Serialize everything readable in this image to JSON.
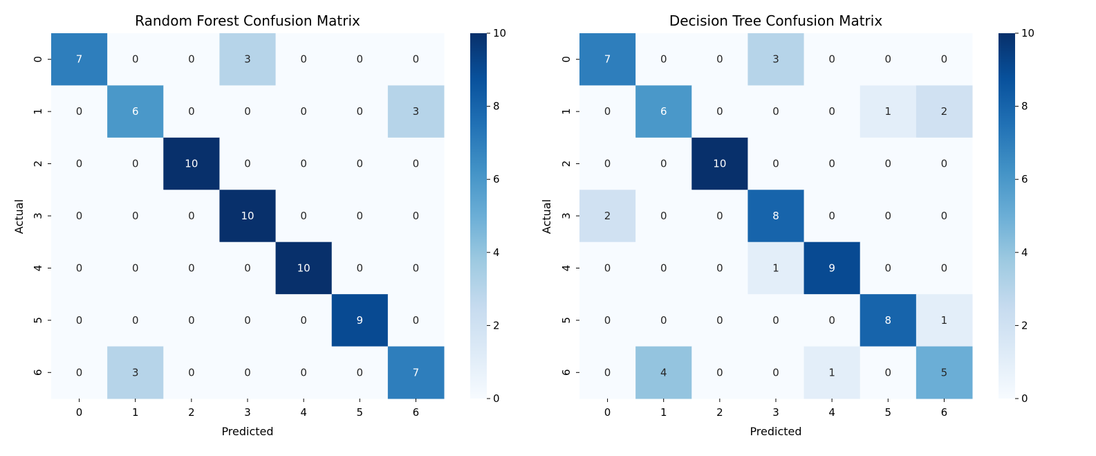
{
  "colors": {
    "scale_low": "#f7fbff",
    "scale_high": "#08306b",
    "text_dark": "#262626",
    "text_light": "#ffffff"
  },
  "chart_data": [
    {
      "type": "heatmap",
      "title": "Random Forest Confusion Matrix",
      "xlabel": "Predicted",
      "ylabel": "Actual",
      "x_categories": [
        "0",
        "1",
        "2",
        "3",
        "4",
        "5",
        "6"
      ],
      "y_categories": [
        "0",
        "1",
        "2",
        "3",
        "4",
        "5",
        "6"
      ],
      "values": [
        [
          7,
          0,
          0,
          3,
          0,
          0,
          0
        ],
        [
          0,
          6,
          0,
          0,
          0,
          0,
          3
        ],
        [
          0,
          0,
          10,
          0,
          0,
          0,
          0
        ],
        [
          0,
          0,
          0,
          10,
          0,
          0,
          0
        ],
        [
          0,
          0,
          0,
          0,
          10,
          0,
          0
        ],
        [
          0,
          0,
          0,
          0,
          0,
          9,
          0
        ],
        [
          0,
          3,
          0,
          0,
          0,
          0,
          7
        ]
      ],
      "colorbar": {
        "range": [
          0,
          10
        ],
        "ticks": [
          "0",
          "2",
          "4",
          "6",
          "8",
          "10"
        ],
        "colormap": "Blues"
      },
      "annotated": true
    },
    {
      "type": "heatmap",
      "title": "Decision Tree Confusion Matrix",
      "xlabel": "Predicted",
      "ylabel": "Actual",
      "x_categories": [
        "0",
        "1",
        "2",
        "3",
        "4",
        "5",
        "6"
      ],
      "y_categories": [
        "0",
        "1",
        "2",
        "3",
        "4",
        "5",
        "6"
      ],
      "values": [
        [
          7,
          0,
          0,
          3,
          0,
          0,
          0
        ],
        [
          0,
          6,
          0,
          0,
          0,
          1,
          2
        ],
        [
          0,
          0,
          10,
          0,
          0,
          0,
          0
        ],
        [
          2,
          0,
          0,
          8,
          0,
          0,
          0
        ],
        [
          0,
          0,
          0,
          1,
          9,
          0,
          0
        ],
        [
          0,
          0,
          0,
          0,
          0,
          8,
          1
        ],
        [
          0,
          4,
          0,
          0,
          1,
          0,
          5
        ]
      ],
      "colorbar": {
        "range": [
          0,
          10
        ],
        "ticks": [
          "0",
          "2",
          "4",
          "6",
          "8",
          "10"
        ],
        "colormap": "Blues"
      },
      "annotated": true
    }
  ]
}
